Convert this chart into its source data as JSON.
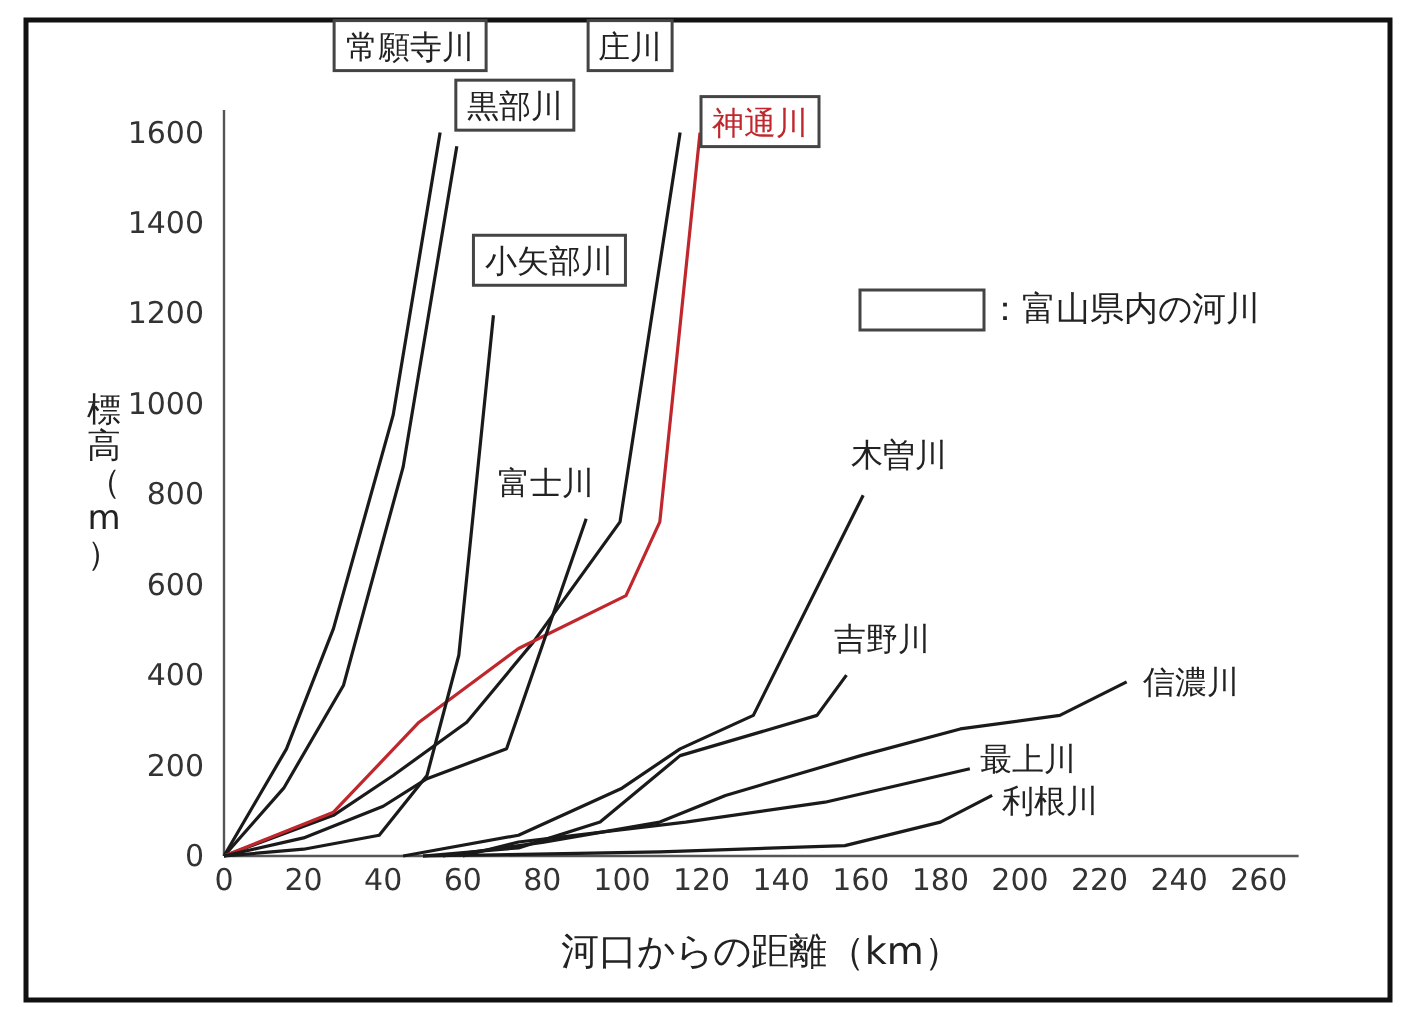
{
  "chart_data": {
    "type": "line",
    "xlabel": "河口からの距離（km）",
    "ylabel": "標高（m）",
    "xlim": [
      0,
      270
    ],
    "ylim": [
      0,
      1650
    ],
    "xticks": [
      0,
      20,
      40,
      60,
      80,
      100,
      120,
      140,
      160,
      180,
      200,
      220,
      240,
      260
    ],
    "yticks": [
      0,
      200,
      400,
      600,
      800,
      1000,
      1200,
      1400,
      1600
    ],
    "grid": false,
    "marker": "none",
    "line_style": "solid",
    "annotations": [
      "：富山県内の河川"
    ],
    "series": [
      {
        "name": "常願寺川",
        "color": "#1a1a1a",
        "x": [
          0,
          15.7,
          27.5,
          42.5,
          54.3
        ],
        "values": [
          0,
          237,
          503,
          975,
          1600
        ]
      },
      {
        "name": "黒部川",
        "color": "#1a1a1a",
        "x": [
          0,
          15,
          30,
          45,
          58.5
        ],
        "values": [
          0,
          150,
          377,
          860,
          1570
        ]
      },
      {
        "name": "庄川",
        "color": "#1a1a1a",
        "x": [
          0,
          27.5,
          42.5,
          61,
          77.7,
          99.5,
          114.6
        ],
        "values": [
          0,
          90,
          178,
          296,
          473,
          739,
          1600
        ]
      },
      {
        "name": "神通川",
        "color": "#c0272d",
        "x": [
          0,
          27.5,
          49,
          74,
          101,
          109.5,
          119.6
        ],
        "values": [
          0,
          97,
          296,
          459,
          576,
          739,
          1600
        ]
      },
      {
        "name": "小矢部川",
        "color": "#1a1a1a",
        "x": [
          0,
          20,
          39,
          51,
          59,
          67.7
        ],
        "values": [
          0,
          15,
          46,
          178,
          444,
          1196
        ]
      },
      {
        "name": "富士川",
        "color": "#1a1a1a",
        "x": [
          0,
          20,
          40,
          51,
          71,
          91
        ],
        "values": [
          0,
          40,
          110,
          171,
          237,
          746
        ]
      },
      {
        "name": "木曽川",
        "color": "#1a1a1a",
        "x": [
          45,
          74,
          100,
          114.6,
          133,
          160.6
        ],
        "values": [
          0,
          46,
          150,
          237,
          311,
          798
        ]
      },
      {
        "name": "吉野川",
        "color": "#1a1a1a",
        "x": [
          50,
          74,
          94.5,
          114.6,
          149,
          156.4
        ],
        "values": [
          0,
          18,
          75,
          222,
          311,
          400
        ]
      },
      {
        "name": "信濃川",
        "color": "#1a1a1a",
        "x": [
          55,
          80,
          109.5,
          126,
          160,
          185,
          210,
          226.8
        ],
        "values": [
          0,
          30,
          75,
          134,
          222,
          281,
          311,
          385
        ]
      },
      {
        "name": "最上川",
        "color": "#1a1a1a",
        "x": [
          60,
          74,
          116,
          151,
          187.4
        ],
        "values": [
          0,
          31,
          75,
          119,
          193
        ]
      },
      {
        "name": "利根川",
        "color": "#1a1a1a",
        "x": [
          50,
          109.5,
          156,
          180,
          193
        ],
        "values": [
          0,
          9,
          23,
          75,
          134
        ]
      }
    ]
  }
}
